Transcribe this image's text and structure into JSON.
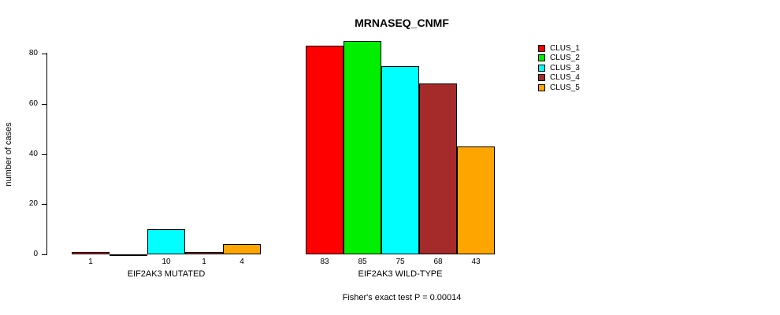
{
  "chart_data": {
    "type": "bar",
    "title": "MRNASEQ_CNMF",
    "xlabel": "",
    "ylabel": "number of cases",
    "ylim": [
      0,
      85
    ],
    "yticks": [
      0,
      20,
      40,
      60,
      80
    ],
    "grid": false,
    "legend_position": "right",
    "categories": [
      "EIF2AK3 MUTATED",
      "EIF2AK3 WILD-TYPE"
    ],
    "series": [
      {
        "name": "CLUS_1",
        "color": "#ff0000",
        "values": [
          1,
          83
        ]
      },
      {
        "name": "CLUS_2",
        "color": "#00ee00",
        "values": [
          0,
          85
        ]
      },
      {
        "name": "CLUS_3",
        "color": "#00ffff",
        "values": [
          10,
          75
        ]
      },
      {
        "name": "CLUS_4",
        "color": "#a52a2a",
        "values": [
          1,
          68
        ]
      },
      {
        "name": "CLUS_5",
        "color": "#ffa500",
        "values": [
          4,
          43
        ]
      }
    ],
    "bar_labels": [
      [
        "1",
        "",
        "10",
        "1",
        "4"
      ],
      [
        "83",
        "85",
        "75",
        "68",
        "43"
      ]
    ],
    "annotation": "Fisher's exact test P = 0.00014"
  }
}
